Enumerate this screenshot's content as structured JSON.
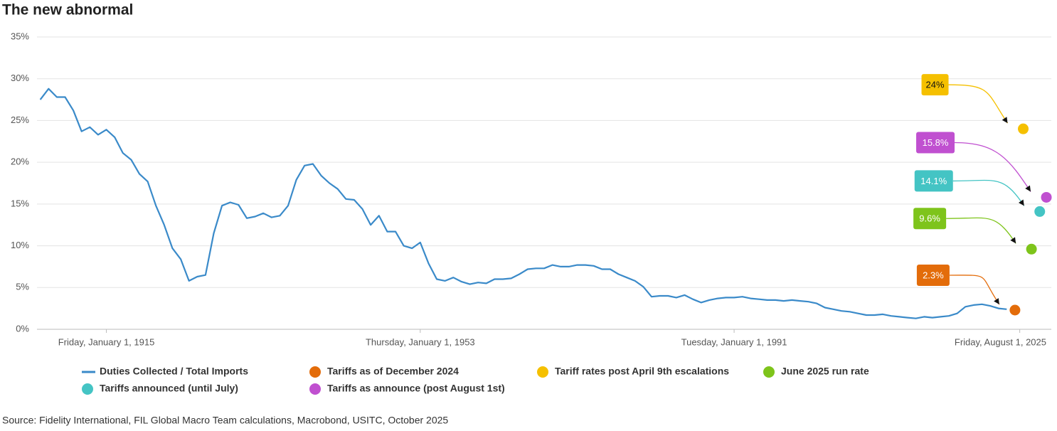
{
  "chart_data": {
    "type": "line",
    "title": "The new abnormal",
    "source": "Source: Fidelity International, FIL Global Macro Team calculations, Macrobond, USITC, October 2025",
    "xlim": [
      1906.6,
      2029.4
    ],
    "xticks": [
      {
        "value": 1915,
        "label": "Friday, January 1, 1915"
      },
      {
        "value": 1953,
        "label": "Thursday, January 1, 1953"
      },
      {
        "value": 1991,
        "label": "Tuesday, January 1, 1991"
      },
      {
        "value": 2025.58,
        "label": "Friday, August 1, 2025"
      }
    ],
    "ylim": [
      0,
      35
    ],
    "yticks": [
      {
        "value": 0,
        "label": "0%"
      },
      {
        "value": 5,
        "label": "5%"
      },
      {
        "value": 10,
        "label": "10%"
      },
      {
        "value": 15,
        "label": "15%"
      },
      {
        "value": 20,
        "label": "20%"
      },
      {
        "value": 25,
        "label": "25%"
      },
      {
        "value": 30,
        "label": "30%"
      },
      {
        "value": 35,
        "label": "35%"
      }
    ],
    "grid": true,
    "series": [
      {
        "name": "Duties Collected / Total Imports",
        "type": "line",
        "color": "#3a8ac9",
        "x": [
          1907,
          1908,
          1909,
          1910,
          1911,
          1912,
          1913,
          1914,
          1915,
          1916,
          1917,
          1918,
          1919,
          1920,
          1921,
          1922,
          1923,
          1924,
          1925,
          1926,
          1927,
          1928,
          1929,
          1930,
          1931,
          1932,
          1933,
          1934,
          1935,
          1936,
          1937,
          1938,
          1939,
          1940,
          1941,
          1942,
          1943,
          1944,
          1945,
          1946,
          1947,
          1948,
          1949,
          1950,
          1951,
          1952,
          1953,
          1954,
          1955,
          1956,
          1957,
          1958,
          1959,
          1960,
          1961,
          1962,
          1963,
          1964,
          1965,
          1966,
          1967,
          1968,
          1969,
          1970,
          1971,
          1972,
          1973,
          1974,
          1975,
          1976,
          1977,
          1978,
          1979,
          1980,
          1981,
          1982,
          1983,
          1984,
          1985,
          1986,
          1987,
          1988,
          1989,
          1990,
          1991,
          1992,
          1993,
          1994,
          1995,
          1996,
          1997,
          1998,
          1999,
          2000,
          2001,
          2002,
          2003,
          2004,
          2005,
          2006,
          2007,
          2008,
          2009,
          2010,
          2011,
          2012,
          2013,
          2014,
          2015,
          2016,
          2017,
          2018,
          2019,
          2020,
          2021,
          2022,
          2023,
          2024
        ],
        "values": [
          27.5,
          28.8,
          27.8,
          27.8,
          26.2,
          23.7,
          24.2,
          23.3,
          23.9,
          23.0,
          21.1,
          20.3,
          18.6,
          17.7,
          14.8,
          12.5,
          9.7,
          8.4,
          5.8,
          6.3,
          6.5,
          11.5,
          14.8,
          15.2,
          14.9,
          13.3,
          13.5,
          13.9,
          13.4,
          13.6,
          14.8,
          17.9,
          19.6,
          19.8,
          18.4,
          17.5,
          16.8,
          15.6,
          15.5,
          14.4,
          12.5,
          13.6,
          11.7,
          11.7,
          10.0,
          9.7,
          10.4,
          7.9,
          6.0,
          5.8,
          6.2,
          5.7,
          5.4,
          5.6,
          5.5,
          6.0,
          6.0,
          6.1,
          6.6,
          7.2,
          7.3,
          7.3,
          7.7,
          7.5,
          7.5,
          7.7,
          7.7,
          7.6,
          7.2,
          7.2,
          6.6,
          6.2,
          5.8,
          5.1,
          3.9,
          4.0,
          4.0,
          3.8,
          4.1,
          3.6,
          3.2,
          3.5,
          3.7,
          3.8,
          3.8,
          3.9,
          3.7,
          3.6,
          3.5,
          3.5,
          3.4,
          3.5,
          3.4,
          3.3,
          3.1,
          2.6,
          2.4,
          2.2,
          2.1,
          1.9,
          1.7,
          1.7,
          1.8,
          1.6,
          1.5,
          1.4,
          1.3,
          1.5,
          1.4,
          1.5,
          1.6,
          1.9,
          2.7,
          2.9,
          3.0,
          2.8,
          2.5,
          2.4
        ]
      },
      {
        "name": "Tariffs as of December 2024",
        "type": "scatter",
        "color": "#e36c0a",
        "x": [
          2025.0
        ],
        "values": [
          2.3
        ],
        "value_labels": [
          "2.3%"
        ]
      },
      {
        "name": "Tariff rates post April 9th escalations",
        "type": "scatter",
        "color": "#f5c000",
        "x": [
          2026.0
        ],
        "values": [
          24
        ],
        "value_labels": [
          "24%"
        ]
      },
      {
        "name": "June 2025 run rate",
        "type": "scatter",
        "color": "#7ec41b",
        "x": [
          2027.0
        ],
        "values": [
          9.6
        ],
        "value_labels": [
          "9.6%"
        ]
      },
      {
        "name": "Tariffs announced (until July)",
        "type": "scatter",
        "color": "#44c4c4",
        "x": [
          2028.0
        ],
        "values": [
          14.1
        ],
        "value_labels": [
          "14.1%"
        ]
      },
      {
        "name": "Tariffs as announce (post August 1st)",
        "type": "scatter",
        "color": "#c050d0",
        "x": [
          2028.8
        ],
        "values": [
          15.8
        ],
        "value_labels": [
          "15.8%"
        ]
      }
    ]
  }
}
